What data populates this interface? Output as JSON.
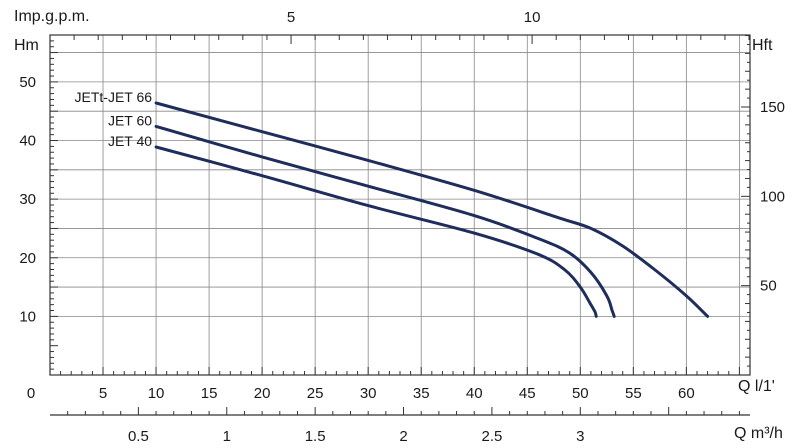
{
  "chart_data": {
    "type": "line",
    "title": "",
    "grid": true,
    "colors": {
      "curve": "#1f2d5c",
      "grid": "#888888",
      "text": "#1a1a1a"
    },
    "axes": {
      "x_bottom": {
        "label": "Q  l/1'",
        "range": [
          0,
          66
        ],
        "ticks": [
          0,
          5,
          10,
          15,
          20,
          25,
          30,
          35,
          40,
          45,
          50,
          55,
          60
        ],
        "tick_labels": [
          "0",
          "5",
          "10",
          "15",
          "20",
          "25",
          "30",
          "35",
          "40",
          "45",
          "50",
          "55",
          "60"
        ]
      },
      "x_secondary": {
        "label": "Q  m³/h",
        "range": [
          0,
          3.96
        ],
        "ticks": [
          0.5,
          1,
          1.5,
          2,
          2.5,
          3
        ],
        "tick_labels": [
          "0.5",
          "1",
          "1.5",
          "2",
          "2.5",
          "3"
        ]
      },
      "x_top": {
        "label": "Imp.g.p.m.",
        "range": [
          0,
          14.52
        ],
        "ticks": [
          5,
          10
        ],
        "tick_labels": [
          "5",
          "10"
        ]
      },
      "y_left": {
        "label": "Hm",
        "range": [
          0,
          58
        ],
        "ticks": [
          10,
          20,
          30,
          40,
          50
        ],
        "tick_labels": [
          "10",
          "20",
          "30",
          "40",
          "50"
        ]
      },
      "y_right": {
        "label": "Hft",
        "range": [
          0,
          190.3
        ],
        "ticks": [
          50,
          100,
          150
        ],
        "tick_labels": [
          "50",
          "100",
          "150"
        ]
      }
    },
    "series": [
      {
        "name": "JETt-JET 66",
        "x": [
          10,
          20,
          30,
          40,
          48,
          51,
          54,
          57,
          60,
          62
        ],
        "y": [
          46.4,
          41.5,
          36.6,
          31.5,
          26.8,
          25.0,
          22.0,
          18.0,
          13.5,
          10.0
        ]
      },
      {
        "name": "JET 60",
        "x": [
          10,
          20,
          30,
          40,
          46,
          49,
          51,
          52.5,
          53,
          53.2
        ],
        "y": [
          42.4,
          37.2,
          32.2,
          27.2,
          23.3,
          20.8,
          17.5,
          13.5,
          11.0,
          10.0
        ]
      },
      {
        "name": "JET 40",
        "x": [
          10,
          20,
          30,
          40,
          46,
          48.5,
          50,
          51,
          51.4,
          51.5
        ],
        "y": [
          38.9,
          34.0,
          28.9,
          24.2,
          20.6,
          18.0,
          15.0,
          12.0,
          10.7,
          10.0
        ]
      }
    ]
  }
}
